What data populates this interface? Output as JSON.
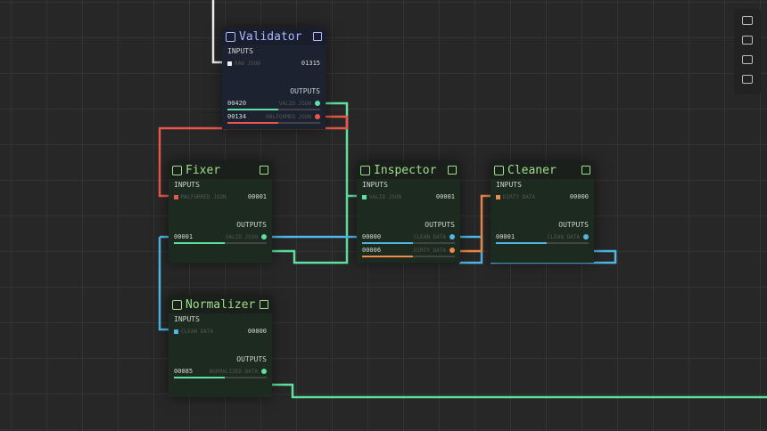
{
  "nodes": [
    {
      "title": "Validator",
      "inputs_label": "INPUTS",
      "inputs": [
        {
          "label": "RAW JSON",
          "count": "01315"
        }
      ],
      "outputs_label": "OUTPUTS",
      "outputs": [
        {
          "count": "00420",
          "label": "VALID JSON"
        },
        {
          "count": "00134",
          "label": "MALFORMED JSON"
        }
      ]
    },
    {
      "title": "Fixer",
      "inputs_label": "INPUTS",
      "inputs": [
        {
          "label": "MALFORMED JSON",
          "count": "00001"
        }
      ],
      "outputs_label": "OUTPUTS",
      "outputs": [
        {
          "count": "00001",
          "label": "VALID JSON"
        }
      ]
    },
    {
      "title": "Inspector",
      "inputs_label": "INPUTS",
      "inputs": [
        {
          "label": "VALID JSON",
          "count": "00001"
        }
      ],
      "outputs_label": "OUTPUTS",
      "outputs": [
        {
          "count": "00000",
          "label": "CLEAN DATA"
        },
        {
          "count": "00006",
          "label": "DIRTY DATA"
        }
      ]
    },
    {
      "title": "Cleaner",
      "inputs_label": "INPUTS",
      "inputs": [
        {
          "label": "DIRTY DATA",
          "count": "00000"
        }
      ],
      "outputs_label": "OUTPUTS",
      "outputs": [
        {
          "count": "00001",
          "label": "CLEAN DATA"
        }
      ]
    },
    {
      "title": "Normalizer",
      "inputs_label": "INPUTS",
      "inputs": [
        {
          "label": "CLEAN DATA",
          "count": "00000"
        }
      ],
      "outputs_label": "OUTPUTS",
      "outputs": [
        {
          "count": "00085",
          "label": "NORMALIZED DATA"
        }
      ]
    }
  ]
}
